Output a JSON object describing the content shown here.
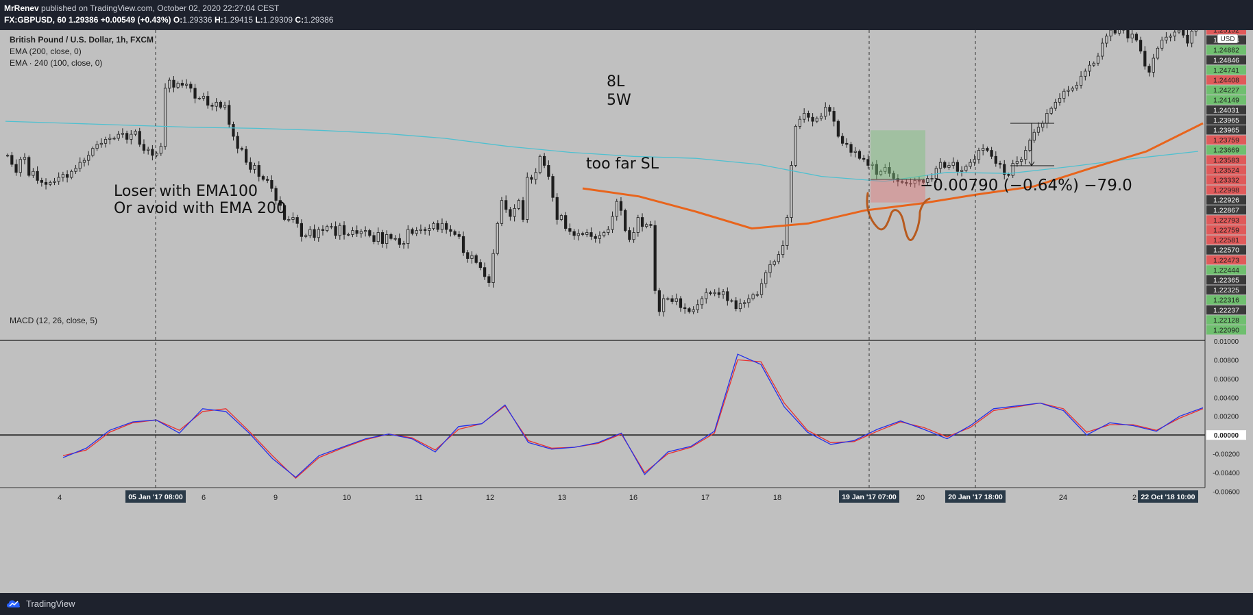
{
  "header": {
    "author": "MrRenev",
    "published_text": "published on TradingView.com, October 02, 2020 22:27:04 CEST",
    "symbol": "FX:GBPUSD, 60",
    "last": "1.29386",
    "change": "+0.00549 (+0.43%)",
    "o_label": "O:",
    "o": "1.29336",
    "h_label": "H:",
    "h": "1.29415",
    "l_label": "L:",
    "l": "1.29309",
    "c_label": "C:",
    "c": "1.29386"
  },
  "legend": {
    "title": "British Pound / U.S. Dollar, 1h, FXCM",
    "ema1": "EMA (200, close, 0)",
    "ema2": "EMA · 240 (100, close, 0)",
    "macd": "MACD (12, 26, close, 5)"
  },
  "annotations": {
    "loser1": "Loser with EMA100",
    "loser2": "Or avoid with EMA 200",
    "l8": "8L",
    "w5": "5W",
    "too_far": "too far SL",
    "measure": "−0.00790 (−0.64%) −79.0"
  },
  "footer": {
    "brand": "TradingView"
  },
  "colors": {
    "background": "#c0c0c0",
    "ema200": "#4ec0d0",
    "ema100": "#e8641c",
    "macd": "#2530e8",
    "signal": "#e83030",
    "up_candle": "#c0c0c0",
    "down_candle": "#1e1e1e"
  },
  "chart_data": [
    {
      "type": "candlestick",
      "title": "British Pound / U.S. Dollar, 1h, FXCM",
      "currency": "USD",
      "x_ticks": [
        "4",
        "6",
        "9",
        "10",
        "11",
        "12",
        "13",
        "16",
        "17",
        "18",
        "20",
        "24",
        "2"
      ],
      "x_highlight_labels": [
        "05 Jan '17   08:00",
        "19 Jan '17   07:00",
        "20 Jan '17   18:00",
        "22 Oct '18   10:00"
      ],
      "ylim": [
        1.2209,
        1.2518
      ],
      "price_labels": [
        {
          "value": "1.25152",
          "kind": "down"
        },
        {
          "value": "1.24934",
          "kind": "neutral"
        },
        {
          "value": "1.24882",
          "kind": "up"
        },
        {
          "value": "1.24846",
          "kind": "neutral"
        },
        {
          "value": "1.24741",
          "kind": "up"
        },
        {
          "value": "1.24408",
          "kind": "down"
        },
        {
          "value": "1.24227",
          "kind": "up"
        },
        {
          "value": "1.24149",
          "kind": "up"
        },
        {
          "value": "1.24031",
          "kind": "neutral"
        },
        {
          "value": "1.23965",
          "kind": "neutral"
        },
        {
          "value": "1.23965",
          "kind": "neutral"
        },
        {
          "value": "1.23759",
          "kind": "down"
        },
        {
          "value": "1.23669",
          "kind": "up"
        },
        {
          "value": "1.23583",
          "kind": "down"
        },
        {
          "value": "1.23524",
          "kind": "down"
        },
        {
          "value": "1.23332",
          "kind": "down"
        },
        {
          "value": "1.22998",
          "kind": "down"
        },
        {
          "value": "1.22926",
          "kind": "neutral"
        },
        {
          "value": "1.22867",
          "kind": "neutral"
        },
        {
          "value": "1.22793",
          "kind": "down"
        },
        {
          "value": "1.22759",
          "kind": "down"
        },
        {
          "value": "1.22581",
          "kind": "down"
        },
        {
          "value": "1.22570",
          "kind": "neutral"
        },
        {
          "value": "1.22473",
          "kind": "down"
        },
        {
          "value": "1.22444",
          "kind": "up"
        },
        {
          "value": "1.22365",
          "kind": "neutral"
        },
        {
          "value": "1.22325",
          "kind": "neutral"
        },
        {
          "value": "1.22316",
          "kind": "up"
        },
        {
          "value": "1.22237",
          "kind": "neutral"
        },
        {
          "value": "1.22128",
          "kind": "up"
        },
        {
          "value": "1.22090",
          "kind": "up"
        }
      ],
      "close_path": [
        1.2393,
        1.2384,
        1.2376,
        1.2389,
        1.2391,
        1.2373,
        1.2377,
        1.2368,
        1.2366,
        1.2364,
        1.2366,
        1.2367,
        1.2371,
        1.2374,
        1.2371,
        1.2377,
        1.238,
        1.2386,
        1.2388,
        1.2393,
        1.24,
        1.2404,
        1.2405,
        1.2409,
        1.241,
        1.241,
        1.2414,
        1.2415,
        1.2409,
        1.2414,
        1.2417,
        1.2404,
        1.2398,
        1.2399,
        1.2393,
        1.2395,
        1.2402,
        1.246,
        1.2468,
        1.2461,
        1.2465,
        1.2463,
        1.2464,
        1.246,
        1.245,
        1.245,
        1.2452,
        1.2443,
        1.2442,
        1.2446,
        1.2441,
        1.2443,
        1.2424,
        1.2412,
        1.24,
        1.2399,
        1.2386,
        1.2379,
        1.2383,
        1.2372,
        1.2369,
        1.2368,
        1.236,
        1.2348,
        1.2343,
        1.2329,
        1.2329,
        1.2331,
        1.2325,
        1.2312,
        1.2313,
        1.2319,
        1.2311,
        1.2319,
        1.2318,
        1.2322,
        1.2322,
        1.2313,
        1.2323,
        1.2314,
        1.2314,
        1.2318,
        1.2315,
        1.2317,
        1.2318,
        1.2313,
        1.2307,
        1.2316,
        1.2305,
        1.2314,
        1.231,
        1.231,
        1.2304,
        1.2305,
        1.2319,
        1.2315,
        1.2318,
        1.2319,
        1.2318,
        1.232,
        1.2325,
        1.2319,
        1.2325,
        1.2319,
        1.2317,
        1.2314,
        1.2312,
        1.2296,
        1.229,
        1.2293,
        1.2286,
        1.2281,
        1.2272,
        1.2266,
        1.2295,
        1.2325,
        1.2348,
        1.2339,
        1.2332,
        1.234,
        1.2348,
        1.2329,
        1.2371,
        1.2369,
        1.2376,
        1.2392,
        1.2383,
        1.2372,
        1.2351,
        1.2329,
        1.2333,
        1.232,
        1.2317,
        1.2313,
        1.2315,
        1.2314,
        1.2316,
        1.2312,
        1.231,
        1.2313,
        1.2316,
        1.2319,
        1.2332,
        1.2347,
        1.2338,
        1.2318,
        1.2309,
        1.2316,
        1.2331,
        1.2322,
        1.2324,
        1.2323,
        1.2258,
        1.2237,
        1.225,
        1.225,
        1.2247,
        1.225,
        1.2241,
        1.224,
        1.2237,
        1.2239,
        1.2244,
        1.225,
        1.2256,
        1.2255,
        1.2256,
        1.2254,
        1.2257,
        1.2248,
        1.2248,
        1.224,
        1.2245,
        1.2246,
        1.225,
        1.2254,
        1.2254,
        1.2265,
        1.2276,
        1.2284,
        1.2287,
        1.2294,
        1.2303,
        1.2331,
        1.2383,
        1.2422,
        1.2429,
        1.2435,
        1.2431,
        1.2427,
        1.243,
        1.2432,
        1.2441,
        1.2437,
        1.2427,
        1.2412,
        1.2405,
        1.2404,
        1.2396,
        1.2397,
        1.239,
        1.2389,
        1.2383,
        1.2384,
        1.2374,
        1.2377,
        1.2381,
        1.2375,
        1.237,
        1.2367,
        1.2366,
        1.2365,
        1.2365,
        1.2368,
        1.2368,
        1.2366,
        1.237,
        1.237,
        1.238,
        1.2386,
        1.2381,
        1.2383,
        1.2386,
        1.2377,
        1.2378,
        1.2382,
        1.2386,
        1.2389,
        1.2398,
        1.24,
        1.2398,
        1.2392,
        1.2385,
        1.2384,
        1.2374,
        1.2373,
        1.2385,
        1.2387,
        1.2389,
        1.2398,
        1.2408,
        1.2416,
        1.2421,
        1.2425,
        1.2435,
        1.244,
        1.2446,
        1.245,
        1.2457,
        1.2458,
        1.246,
        1.2463,
        1.2472,
        1.2477,
        1.2483,
        1.2485,
        1.2492,
        1.2505,
        1.2512,
        1.2518,
        1.2515,
        1.2519,
        1.2518,
        1.251,
        1.2514,
        1.2508,
        1.2497,
        1.2482,
        1.2476,
        1.249,
        1.25,
        1.2508,
        1.2511,
        1.2512,
        1.2516,
        1.2518,
        1.2513,
        1.2505,
        1.2517,
        1.2519
      ],
      "series": [
        {
          "name": "EMA (200, close, 0)",
          "values": [
            1.2427,
            1.2425,
            1.2423,
            1.2421,
            1.242,
            1.2418,
            1.2415,
            1.241,
            1.2402,
            1.2396,
            1.2392,
            1.239,
            1.2384,
            1.2372,
            1.2367,
            1.2376,
            1.2375,
            1.2382,
            1.239,
            1.2397
          ]
        },
        {
          "name": "EMA · 240 (100, close, 0)",
          "values": [
            1.236,
            1.2352,
            1.2337,
            1.232,
            1.2325,
            1.2338,
            1.2345,
            1.2354,
            1.2362,
            1.238,
            1.2397,
            1.2425
          ]
        }
      ],
      "trade_box": {
        "entry": 1.2369,
        "target": 1.2418,
        "stop": 1.2346
      },
      "measure_text": "−0.00790 (−0.64%) −79.0"
    },
    {
      "type": "line",
      "title": "MACD (12, 26, close, 5)",
      "ylim": [
        -0.0056,
        0.01
      ],
      "y_ticks": [
        "0.01000",
        "0.00800",
        "0.00600",
        "0.00400",
        "0.00200",
        "0.00000",
        "-0.00200",
        "-0.00400",
        "-0.00600"
      ],
      "series": [
        {
          "name": "MACD",
          "values": [
            -0.0024,
            -0.0014,
            0.0005,
            0.0014,
            0.0016,
            0.0002,
            0.0028,
            0.0025,
            0.0002,
            -0.0025,
            -0.0045,
            -0.0022,
            -0.0013,
            -0.0004,
            0.0001,
            -0.0004,
            -0.0018,
            0.0009,
            0.0012,
            0.0032,
            -0.0008,
            -0.0015,
            -0.0013,
            -0.0008,
            0.0002,
            -0.0042,
            -0.0018,
            -0.0012,
            0.0004,
            0.0086,
            0.0075,
            0.003,
            0.0003,
            -0.001,
            -0.0006,
            0.0006,
            0.0015,
            0.0006,
            -0.0004,
            0.001,
            0.0028,
            0.0031,
            0.0034,
            0.0026,
            0.0,
            0.0013,
            0.001,
            0.0004,
            0.002,
            0.0029
          ]
        },
        {
          "name": "Signal",
          "values": [
            -0.0022,
            -0.0016,
            0.0003,
            0.0013,
            0.0016,
            0.0005,
            0.0025,
            0.0028,
            0.0004,
            -0.0022,
            -0.0046,
            -0.0024,
            -0.0014,
            -0.0005,
            0.0001,
            -0.0003,
            -0.0016,
            0.0006,
            0.0012,
            0.0031,
            -0.0006,
            -0.0014,
            -0.0013,
            -0.0009,
            0.0001,
            -0.004,
            -0.002,
            -0.0013,
            0.0002,
            0.008,
            0.0078,
            0.0034,
            0.0005,
            -0.0008,
            -0.0007,
            0.0004,
            0.0014,
            0.0008,
            -0.0002,
            0.0008,
            0.0026,
            0.003,
            0.0034,
            0.0028,
            0.0003,
            0.0011,
            0.0011,
            0.0005,
            0.0018,
            0.0028
          ]
        }
      ]
    }
  ]
}
